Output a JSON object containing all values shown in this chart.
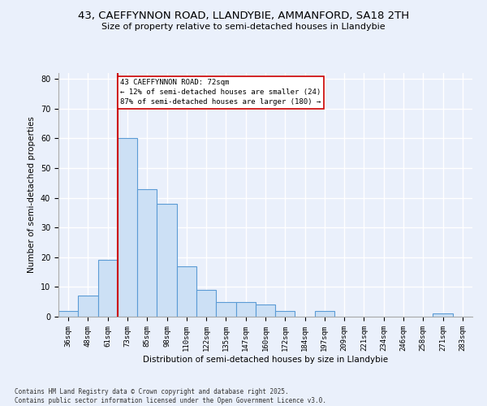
{
  "title_line1": "43, CAEFFYNNON ROAD, LLANDYBIE, AMMANFORD, SA18 2TH",
  "title_line2": "Size of property relative to semi-detached houses in Llandybie",
  "xlabel": "Distribution of semi-detached houses by size in Llandybie",
  "ylabel": "Number of semi-detached properties",
  "annotation_title": "43 CAEFFYNNON ROAD: 72sqm",
  "annotation_line2": "← 12% of semi-detached houses are smaller (24)",
  "annotation_line3": "87% of semi-detached houses are larger (180) →",
  "footer_line1": "Contains HM Land Registry data © Crown copyright and database right 2025.",
  "footer_line2": "Contains public sector information licensed under the Open Government Licence v3.0.",
  "categories": [
    "36sqm",
    "48sqm",
    "61sqm",
    "73sqm",
    "85sqm",
    "98sqm",
    "110sqm",
    "122sqm",
    "135sqm",
    "147sqm",
    "160sqm",
    "172sqm",
    "184sqm",
    "197sqm",
    "209sqm",
    "221sqm",
    "234sqm",
    "246sqm",
    "258sqm",
    "271sqm",
    "283sqm"
  ],
  "values": [
    2,
    7,
    19,
    60,
    43,
    38,
    17,
    9,
    5,
    5,
    4,
    2,
    0,
    2,
    0,
    0,
    0,
    0,
    0,
    1,
    0
  ],
  "bar_color": "#cce0f5",
  "bar_edge_color": "#5b9bd5",
  "vline_color": "#cc0000",
  "annotation_box_color": "#cc0000",
  "annotation_box_fill": "#ffffff",
  "background_color": "#eaf0fb",
  "grid_color": "#ffffff",
  "ylim": [
    0,
    82
  ],
  "yticks": [
    0,
    10,
    20,
    30,
    40,
    50,
    60,
    70,
    80
  ]
}
